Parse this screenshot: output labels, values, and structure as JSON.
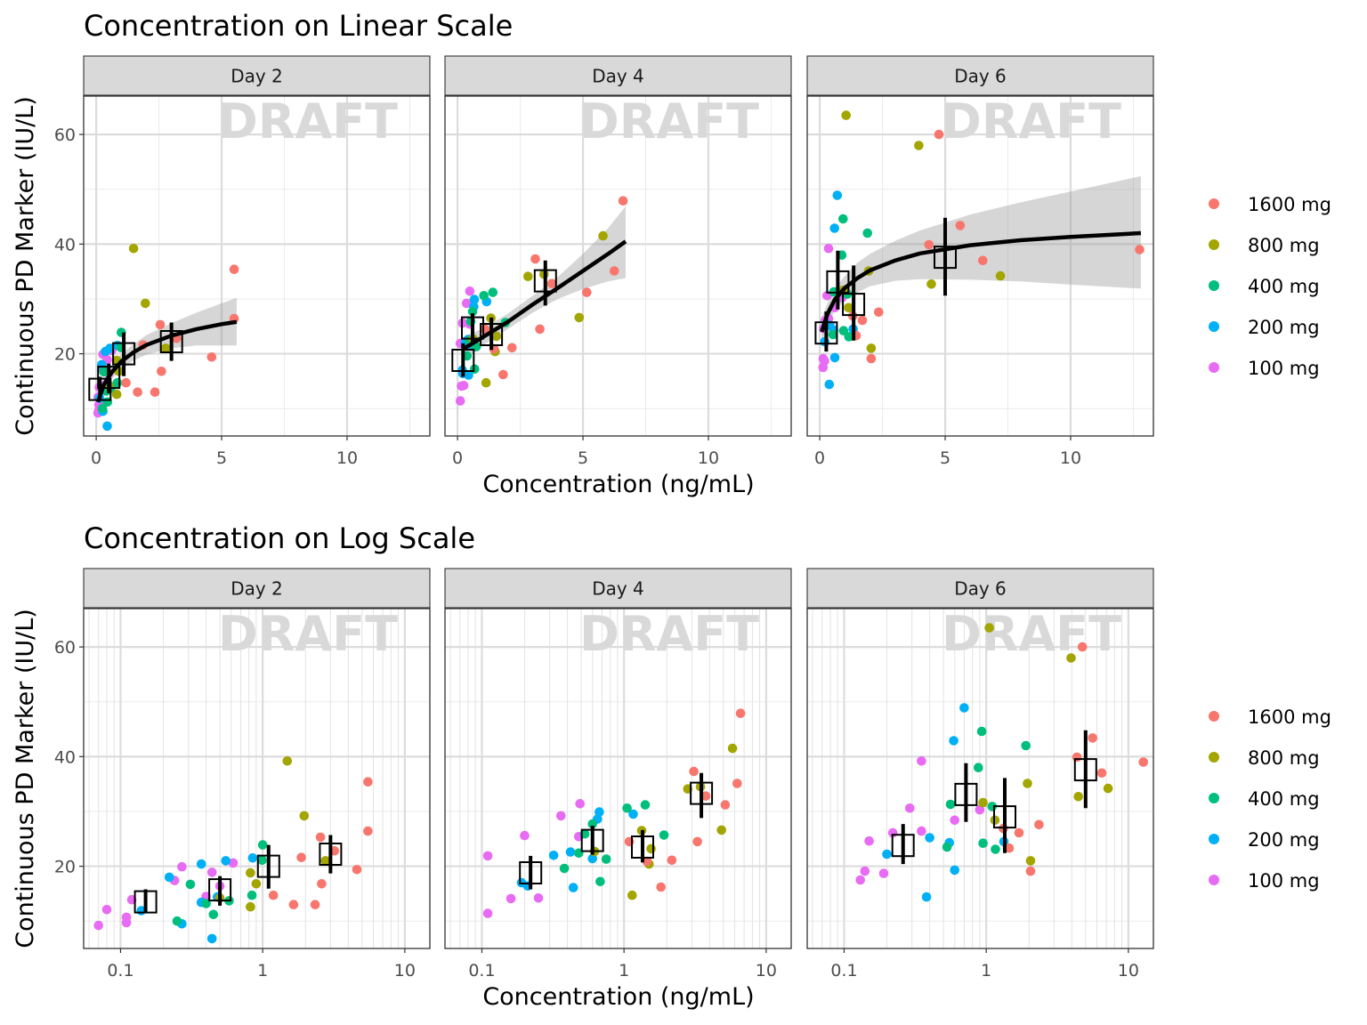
{
  "chart_data": [
    {
      "type": "scatter",
      "title": "Concentration on Linear Scale",
      "x_scale": "linear",
      "xlabel": "Concentration (ng/mL)",
      "ylabel": "Continuous PD Marker (IU/L)",
      "xlim": [
        -0.5,
        13.3
      ],
      "ylim": [
        5,
        67
      ],
      "x_ticks": [
        0,
        5,
        10
      ],
      "x_tick_labels": [
        "0",
        "5",
        "10"
      ],
      "y_ticks": [
        20,
        40,
        60
      ],
      "y_tick_labels": [
        "20",
        "40",
        "60"
      ],
      "watermark": "DRAFT",
      "panels": [
        {
          "label": "Day 2",
          "fit": [
            [
              0.07,
              11.2
            ],
            [
              0.3,
              14.3
            ],
            [
              0.6,
              16.5
            ],
            [
              1.0,
              18.6
            ],
            [
              1.5,
              20.3
            ],
            [
              2.0,
              21.6
            ],
            [
              3.0,
              23.3
            ],
            [
              4.0,
              24.5
            ],
            [
              5.0,
              25.4
            ],
            [
              5.6,
              25.8
            ]
          ],
          "band": [
            [
              0.07,
              9.6,
              12.8
            ],
            [
              0.3,
              13.3,
              15.3
            ],
            [
              0.6,
              15.3,
              17.7
            ],
            [
              1.0,
              17.2,
              20.0
            ],
            [
              1.5,
              18.8,
              21.8
            ],
            [
              2.0,
              19.8,
              23.4
            ],
            [
              3.0,
              21.0,
              25.6
            ],
            [
              4.0,
              21.5,
              27.5
            ],
            [
              5.0,
              21.5,
              29.2
            ],
            [
              5.6,
              21.5,
              30.2
            ]
          ]
        },
        {
          "label": "Day 4",
          "fit": [
            [
              0.2,
              20.8
            ],
            [
              1.0,
              23.0
            ],
            [
              2.0,
              25.8
            ],
            [
              3.0,
              29.0
            ],
            [
              4.0,
              32.0
            ],
            [
              5.0,
              35.1
            ],
            [
              6.0,
              38.2
            ],
            [
              6.7,
              40.5
            ]
          ],
          "band": [
            [
              0.2,
              18.5,
              23.0
            ],
            [
              1.0,
              21.5,
              24.6
            ],
            [
              2.0,
              24.5,
              27.3
            ],
            [
              3.0,
              27.5,
              30.6
            ],
            [
              4.0,
              30.0,
              34.0
            ],
            [
              5.0,
              31.8,
              38.2
            ],
            [
              6.0,
              33.2,
              42.9
            ],
            [
              6.7,
              33.8,
              46.9
            ]
          ]
        },
        {
          "label": "Day 6",
          "fit": [
            [
              0.08,
              24.0
            ],
            [
              0.3,
              27.2
            ],
            [
              0.6,
              29.9
            ],
            [
              1.0,
              32.0
            ],
            [
              1.5,
              33.8
            ],
            [
              2.0,
              35.2
            ],
            [
              3.0,
              37.0
            ],
            [
              4.0,
              38.3
            ],
            [
              6.0,
              39.8
            ],
            [
              8.0,
              40.7
            ],
            [
              10.0,
              41.3
            ],
            [
              12.8,
              42.0
            ]
          ],
          "band": [
            [
              0.08,
              21.5,
              26.5
            ],
            [
              0.3,
              25.2,
              29.2
            ],
            [
              0.6,
              27.9,
              31.9
            ],
            [
              1.0,
              29.8,
              34.2
            ],
            [
              1.5,
              31.2,
              36.6
            ],
            [
              2.0,
              32.3,
              38.2
            ],
            [
              3.0,
              33.3,
              40.6
            ],
            [
              4.0,
              33.6,
              42.5
            ],
            [
              6.0,
              33.5,
              45.4
            ],
            [
              8.0,
              33.2,
              47.6
            ],
            [
              10.0,
              32.6,
              49.6
            ],
            [
              12.8,
              31.9,
              52.4
            ]
          ]
        }
      ]
    },
    {
      "type": "scatter",
      "title": "Concentration on Log Scale",
      "x_scale": "log10",
      "xlabel": "Concentration (ng/mL)",
      "ylabel": "Continuous PD Marker (IU/L)",
      "xlim": [
        0.055,
        15
      ],
      "ylim": [
        5,
        67
      ],
      "x_ticks": [
        0.1,
        1,
        10
      ],
      "x_tick_labels": [
        "0.1",
        "1",
        "10"
      ],
      "y_ticks": [
        20,
        40,
        60
      ],
      "y_tick_labels": [
        "20",
        "40",
        "60"
      ],
      "watermark": "DRAFT",
      "panels": [
        {
          "label": "Day 2"
        },
        {
          "label": "Day 4"
        },
        {
          "label": "Day 6"
        }
      ]
    }
  ],
  "doses": [
    {
      "name": "1600 mg",
      "color": "#F8766D"
    },
    {
      "name": "800 mg",
      "color": "#A3A500"
    },
    {
      "name": "400 mg",
      "color": "#00BF7D"
    },
    {
      "name": "200 mg",
      "color": "#00B0F6"
    },
    {
      "name": "100 mg",
      "color": "#E76BF3"
    }
  ],
  "observations": [
    {
      "panel": "Day 2",
      "points": [
        [
          0.07,
          9.2,
          "100 mg"
        ],
        [
          0.08,
          12.1,
          "100 mg"
        ],
        [
          0.11,
          10.7,
          "100 mg"
        ],
        [
          0.12,
          13.9,
          "100 mg"
        ],
        [
          0.11,
          9.7,
          "100 mg"
        ],
        [
          0.24,
          17.4,
          "100 mg"
        ],
        [
          0.27,
          19.9,
          "100 mg"
        ],
        [
          0.44,
          18.9,
          "100 mg"
        ],
        [
          0.4,
          14.5,
          "100 mg"
        ],
        [
          0.62,
          20.6,
          "100 mg"
        ],
        [
          0.5,
          16.4,
          "100 mg"
        ],
        [
          0.14,
          11.9,
          "200 mg"
        ],
        [
          0.22,
          18.0,
          "200 mg"
        ],
        [
          0.27,
          9.5,
          "200 mg"
        ],
        [
          0.37,
          13.4,
          "200 mg"
        ],
        [
          0.37,
          20.4,
          "200 mg"
        ],
        [
          0.44,
          6.8,
          "200 mg"
        ],
        [
          0.48,
          14.4,
          "200 mg"
        ],
        [
          0.55,
          21.0,
          "200 mg"
        ],
        [
          0.85,
          21.5,
          "200 mg"
        ],
        [
          0.25,
          10.0,
          "400 mg"
        ],
        [
          0.31,
          16.7,
          "400 mg"
        ],
        [
          0.4,
          13.2,
          "400 mg"
        ],
        [
          0.45,
          11.2,
          "400 mg"
        ],
        [
          0.58,
          13.7,
          "400 mg"
        ],
        [
          0.84,
          14.7,
          "400 mg"
        ],
        [
          1.0,
          23.9,
          "400 mg"
        ],
        [
          0.99,
          21.1,
          "400 mg"
        ],
        [
          0.82,
          18.8,
          "800 mg"
        ],
        [
          0.9,
          16.8,
          "800 mg"
        ],
        [
          0.82,
          12.6,
          "800 mg"
        ],
        [
          1.49,
          39.2,
          "800 mg"
        ],
        [
          1.96,
          29.2,
          "800 mg"
        ],
        [
          2.77,
          21.0,
          "800 mg"
        ],
        [
          0.5,
          14.2,
          "800 mg"
        ],
        [
          1.19,
          14.7,
          "1600 mg"
        ],
        [
          1.65,
          13.0,
          "1600 mg"
        ],
        [
          1.87,
          21.6,
          "1600 mg"
        ],
        [
          2.34,
          13.0,
          "1600 mg"
        ],
        [
          2.55,
          25.3,
          "1600 mg"
        ],
        [
          2.6,
          16.8,
          "1600 mg"
        ],
        [
          3.2,
          22.8,
          "1600 mg"
        ],
        [
          4.6,
          19.4,
          "1600 mg"
        ],
        [
          5.5,
          35.4,
          "1600 mg"
        ],
        [
          5.5,
          26.4,
          "1600 mg"
        ]
      ],
      "summaries": [
        [
          0.15,
          13.5,
          11.6,
          15.8
        ],
        [
          0.5,
          15.7,
          12.8,
          18.2
        ],
        [
          1.1,
          20.0,
          15.9,
          23.9
        ],
        [
          3.0,
          22.2,
          18.7,
          25.7
        ]
      ]
    },
    {
      "panel": "Day 4",
      "points": [
        [
          0.11,
          11.4,
          "100 mg"
        ],
        [
          0.11,
          21.9,
          "100 mg"
        ],
        [
          0.16,
          14.1,
          "100 mg"
        ],
        [
          0.2,
          25.6,
          "100 mg"
        ],
        [
          0.25,
          14.2,
          "100 mg"
        ],
        [
          0.36,
          29.2,
          "100 mg"
        ],
        [
          0.49,
          31.4,
          "100 mg"
        ],
        [
          0.48,
          25.4,
          "100 mg"
        ],
        [
          0.19,
          17.0,
          "200 mg"
        ],
        [
          0.21,
          16.4,
          "200 mg"
        ],
        [
          0.32,
          22.0,
          "200 mg"
        ],
        [
          0.42,
          22.6,
          "200 mg"
        ],
        [
          0.44,
          16.1,
          "200 mg"
        ],
        [
          0.6,
          21.4,
          "200 mg"
        ],
        [
          0.65,
          28.6,
          "200 mg"
        ],
        [
          0.67,
          29.9,
          "200 mg"
        ],
        [
          1.16,
          29.5,
          "200 mg"
        ],
        [
          0.38,
          19.6,
          "400 mg"
        ],
        [
          0.48,
          22.4,
          "400 mg"
        ],
        [
          0.53,
          25.9,
          "400 mg"
        ],
        [
          0.6,
          27.7,
          "400 mg"
        ],
        [
          0.68,
          17.2,
          "400 mg"
        ],
        [
          0.75,
          21.3,
          "400 mg"
        ],
        [
          1.05,
          30.6,
          "400 mg"
        ],
        [
          1.41,
          31.2,
          "400 mg"
        ],
        [
          1.91,
          25.7,
          "400 mg"
        ],
        [
          0.62,
          22.7,
          "800 mg"
        ],
        [
          1.14,
          14.7,
          "800 mg"
        ],
        [
          1.33,
          26.5,
          "800 mg"
        ],
        [
          1.5,
          20.4,
          "800 mg"
        ],
        [
          1.55,
          23.2,
          "800 mg"
        ],
        [
          2.81,
          34.1,
          "800 mg"
        ],
        [
          4.85,
          26.6,
          "800 mg"
        ],
        [
          5.8,
          41.5,
          "800 mg"
        ],
        [
          3.45,
          34.5,
          "800 mg"
        ],
        [
          1.09,
          24.5,
          "1600 mg"
        ],
        [
          1.45,
          20.9,
          "1600 mg"
        ],
        [
          1.82,
          16.2,
          "1600 mg"
        ],
        [
          2.17,
          21.1,
          "1600 mg"
        ],
        [
          3.1,
          37.3,
          "1600 mg"
        ],
        [
          3.28,
          24.5,
          "1600 mg"
        ],
        [
          3.76,
          32.8,
          "1600 mg"
        ],
        [
          5.15,
          31.2,
          "1600 mg"
        ],
        [
          6.25,
          35.1,
          "1600 mg"
        ],
        [
          6.6,
          47.9,
          "1600 mg"
        ]
      ],
      "summaries": [
        [
          0.22,
          18.8,
          15.8,
          21.9
        ],
        [
          0.6,
          24.7,
          22.1,
          27.4
        ],
        [
          1.35,
          23.5,
          20.7,
          26.6
        ],
        [
          3.5,
          33.3,
          28.8,
          37.0
        ]
      ]
    },
    {
      "panel": "Day 6",
      "points": [
        [
          0.13,
          17.5,
          "100 mg"
        ],
        [
          0.14,
          19.1,
          "100 mg"
        ],
        [
          0.15,
          24.6,
          "100 mg"
        ],
        [
          0.19,
          18.7,
          "100 mg"
        ],
        [
          0.22,
          26.1,
          "100 mg"
        ],
        [
          0.29,
          30.6,
          "100 mg"
        ],
        [
          0.35,
          26.4,
          "100 mg"
        ],
        [
          0.35,
          39.2,
          "100 mg"
        ],
        [
          0.6,
          28.4,
          "100 mg"
        ],
        [
          0.9,
          30.3,
          "100 mg"
        ],
        [
          0.2,
          22.2,
          "200 mg"
        ],
        [
          0.38,
          14.4,
          "200 mg"
        ],
        [
          0.4,
          25.2,
          "200 mg"
        ],
        [
          0.55,
          24.3,
          "200 mg"
        ],
        [
          0.59,
          42.9,
          "200 mg"
        ],
        [
          0.6,
          19.3,
          "200 mg"
        ],
        [
          0.7,
          48.9,
          "200 mg"
        ],
        [
          1.33,
          24.5,
          "200 mg"
        ],
        [
          0.53,
          23.5,
          "400 mg"
        ],
        [
          0.56,
          31.3,
          "400 mg"
        ],
        [
          0.88,
          38.0,
          "400 mg"
        ],
        [
          0.93,
          44.6,
          "400 mg"
        ],
        [
          0.95,
          24.2,
          "400 mg"
        ],
        [
          1.1,
          30.9,
          "400 mg"
        ],
        [
          1.16,
          23.1,
          "400 mg"
        ],
        [
          1.9,
          42.0,
          "400 mg"
        ],
        [
          1.05,
          63.5,
          "800 mg"
        ],
        [
          1.15,
          28.4,
          "800 mg"
        ],
        [
          1.95,
          35.1,
          "800 mg"
        ],
        [
          2.05,
          21.0,
          "800 mg"
        ],
        [
          3.95,
          58.0,
          "800 mg"
        ],
        [
          4.45,
          32.7,
          "800 mg"
        ],
        [
          7.2,
          34.2,
          "800 mg"
        ],
        [
          0.95,
          31.6,
          "800 mg"
        ],
        [
          1.32,
          26.9,
          "1600 mg"
        ],
        [
          1.45,
          23.3,
          "1600 mg"
        ],
        [
          1.7,
          26.1,
          "1600 mg"
        ],
        [
          2.05,
          19.1,
          "1600 mg"
        ],
        [
          2.35,
          27.6,
          "1600 mg"
        ],
        [
          4.35,
          39.9,
          "1600 mg"
        ],
        [
          4.75,
          60.0,
          "1600 mg"
        ],
        [
          5.6,
          43.4,
          "1600 mg"
        ],
        [
          6.5,
          37.0,
          "1600 mg"
        ],
        [
          12.75,
          39.0,
          "1600 mg"
        ]
      ],
      "summaries": [
        [
          0.26,
          23.8,
          20.4,
          27.7
        ],
        [
          0.72,
          33.1,
          28.1,
          38.8
        ],
        [
          1.35,
          29.0,
          22.4,
          36.1
        ],
        [
          5.0,
          37.6,
          30.6,
          44.8
        ]
      ]
    }
  ]
}
